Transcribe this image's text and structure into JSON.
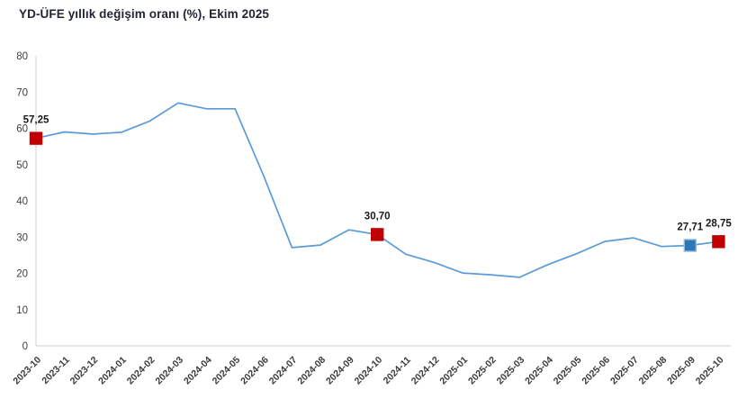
{
  "header": {
    "title": "YD-ÜFE yıllık değişim oranı (%), Ekim 2025"
  },
  "colors": {
    "line": "#5B9BD5",
    "axis": "#D6D6D6",
    "tick_label": "#404040",
    "x_label": "#3a3a3a",
    "point_label": "#1a1a1a",
    "marker_red": "#C00000",
    "marker_blue": "#2E75B6",
    "marker_blue_border": "#8FB8E0",
    "background": "#FFFFFF"
  },
  "chart_data": {
    "type": "line",
    "title": "YD-ÜFE yıllık değişim oranı (%), Ekim 2025",
    "xlabel": "",
    "ylabel": "",
    "ylim": [
      0,
      80
    ],
    "yticks": [
      0,
      10,
      20,
      30,
      40,
      50,
      60,
      70,
      80
    ],
    "grid": false,
    "legend": "none",
    "categories": [
      "2023-10",
      "2023-11",
      "2023-12",
      "2024-01",
      "2024-02",
      "2024-03",
      "2024-04",
      "2024-05",
      "2024-06",
      "2024-07",
      "2024-08",
      "2024-09",
      "2024-10",
      "2024-11",
      "2024-12",
      "2025-01",
      "2025-02",
      "2025-03",
      "2025-04",
      "2025-05",
      "2025-06",
      "2025-07",
      "2025-08",
      "2025-09",
      "2025-10"
    ],
    "values": [
      57.25,
      59.0,
      58.4,
      58.9,
      62.0,
      67.0,
      65.4,
      65.4,
      47.0,
      27.1,
      27.8,
      32.0,
      30.7,
      25.3,
      23.0,
      20.1,
      19.6,
      18.9,
      22.4,
      25.4,
      28.8,
      29.8,
      27.4,
      27.71,
      28.75
    ],
    "highlighted_points": [
      {
        "category": "2023-10",
        "value": 57.25,
        "label": "57,25",
        "marker": "red"
      },
      {
        "category": "2024-10",
        "value": 30.7,
        "label": "30,70",
        "marker": "red"
      },
      {
        "category": "2025-09",
        "value": 27.71,
        "label": "27,71",
        "marker": "blue"
      },
      {
        "category": "2025-10",
        "value": 28.75,
        "label": "28,75",
        "marker": "red"
      }
    ]
  }
}
